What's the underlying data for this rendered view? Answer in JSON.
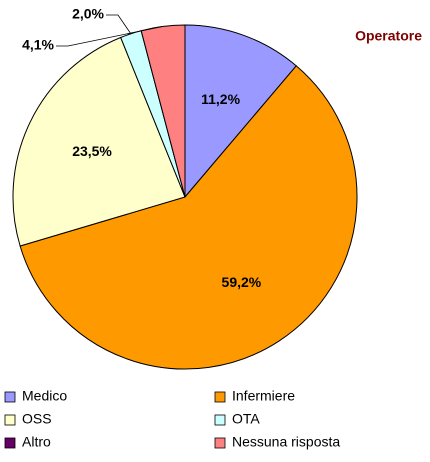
{
  "chart_data": {
    "type": "pie",
    "title": "Operatore",
    "categories": [
      "Medico",
      "Infermiere",
      "OSS",
      "OTA",
      "Altro",
      "Nessuna risposta"
    ],
    "values": [
      11.2,
      59.2,
      23.5,
      2.0,
      0,
      4.1
    ],
    "value_labels": [
      "11,2%",
      "59,2%",
      "23,5%",
      "2,0%",
      null,
      "4,1%"
    ],
    "colors": [
      "#9999ff",
      "#ff9900",
      "#ffffcc",
      "#ccffff",
      "#660066",
      "#ff8080"
    ],
    "legend": "bottom"
  }
}
